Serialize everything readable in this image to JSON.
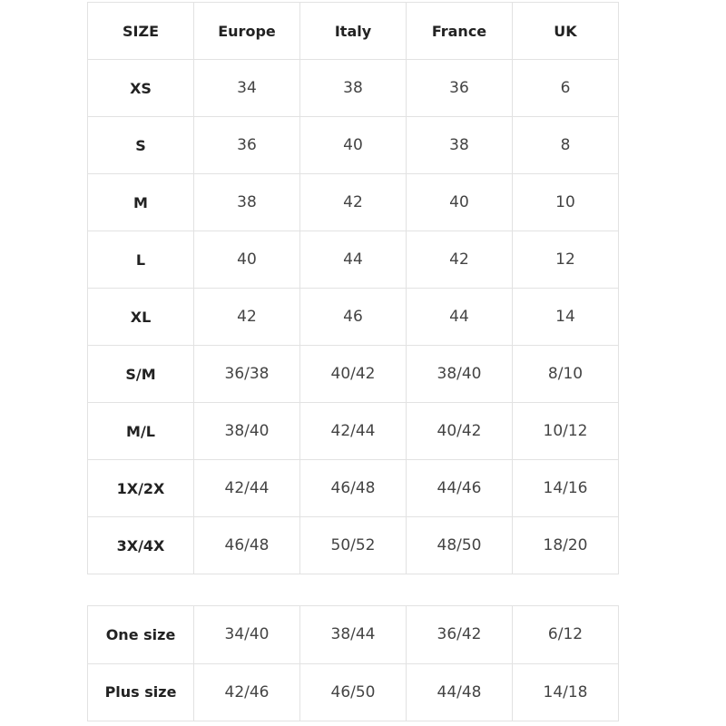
{
  "size_table": {
    "headers": [
      "SIZE",
      "Europe",
      "Italy",
      "France",
      "UK"
    ],
    "rows": [
      [
        "XS",
        "34",
        "38",
        "36",
        "6"
      ],
      [
        "S",
        "36",
        "40",
        "38",
        "8"
      ],
      [
        "M",
        "38",
        "42",
        "40",
        "10"
      ],
      [
        "L",
        "40",
        "44",
        "42",
        "12"
      ],
      [
        "XL",
        "42",
        "46",
        "44",
        "14"
      ],
      [
        "S/M",
        "36/38",
        "40/42",
        "38/40",
        "8/10"
      ],
      [
        "M/L",
        "38/40",
        "42/44",
        "40/42",
        "10/12"
      ],
      [
        "1X/2X",
        "42/44",
        "46/48",
        "44/46",
        "14/16"
      ],
      [
        "3X/4X",
        "46/48",
        "50/52",
        "48/50",
        "18/20"
      ]
    ]
  },
  "extra_table": {
    "rows": [
      [
        "One size",
        "34/40",
        "38/44",
        "36/42",
        "6/12"
      ],
      [
        "Plus size",
        "42/46",
        "46/50",
        "44/48",
        "14/18"
      ]
    ]
  }
}
